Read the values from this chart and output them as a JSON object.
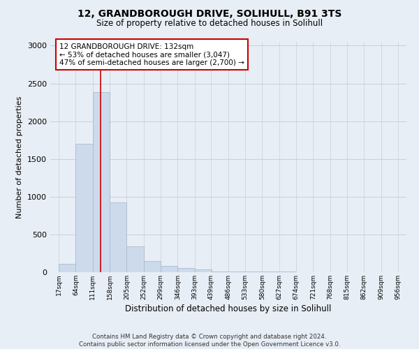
{
  "title_line1": "12, GRANDBOROUGH DRIVE, SOLIHULL, B91 3TS",
  "title_line2": "Size of property relative to detached houses in Solihull",
  "xlabel": "Distribution of detached houses by size in Solihull",
  "ylabel": "Number of detached properties",
  "bar_color": "#ccdaec",
  "bar_edge_color": "#aabbd0",
  "vline_color": "#cc0000",
  "vline_x": 132,
  "annotation_text": "12 GRANDBOROUGH DRIVE: 132sqm\n← 53% of detached houses are smaller (3,047)\n47% of semi-detached houses are larger (2,700) →",
  "bin_edges": [
    17,
    64,
    111,
    158,
    205,
    252,
    299,
    346,
    393,
    439,
    486,
    533,
    580,
    627,
    674,
    721,
    768,
    815,
    862,
    909,
    956
  ],
  "bar_heights": [
    110,
    1700,
    2380,
    920,
    340,
    150,
    85,
    55,
    40,
    12,
    12,
    6,
    6,
    6,
    4,
    3,
    3,
    2,
    2,
    2
  ],
  "ylim": [
    0,
    3050
  ],
  "yticks": [
    0,
    500,
    1000,
    1500,
    2000,
    2500,
    3000
  ],
  "footer_text": "Contains HM Land Registry data © Crown copyright and database right 2024.\nContains public sector information licensed under the Open Government Licence v3.0.",
  "background_color": "#e8eef5",
  "plot_background": "#e8eef5",
  "grid_color": "#c5d0dc",
  "annotation_box_color": "white",
  "annotation_box_edge": "#cc0000"
}
